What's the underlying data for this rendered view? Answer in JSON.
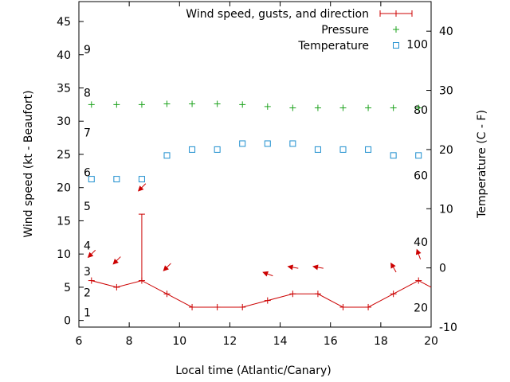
{
  "chart_data": {
    "type": "line",
    "xlabel": "Local time (Atlantic/Canary)",
    "ylabel_left": "Wind speed (kt - Beaufort)",
    "ylabel_right": "Temperature (C - F)",
    "xlim": [
      6,
      20
    ],
    "ylim_left": [
      -1,
      48
    ],
    "ylim_right": [
      -10,
      45
    ],
    "x_ticks": [
      6,
      8,
      10,
      12,
      14,
      16,
      18,
      20
    ],
    "y_left_ticks": [
      0,
      5,
      10,
      15,
      20,
      25,
      30,
      35,
      40,
      45
    ],
    "y_right_ticks": [
      -10,
      0,
      10,
      20,
      30,
      40
    ],
    "beaufort_labels": [
      {
        "label": "1",
        "kt": 1.2
      },
      {
        "label": "2",
        "kt": 4.2
      },
      {
        "label": "3",
        "kt": 7.4
      },
      {
        "label": "4",
        "kt": 11.3
      },
      {
        "label": "5",
        "kt": 17.2
      },
      {
        "label": "6",
        "kt": 22.3
      },
      {
        "label": "7",
        "kt": 28.3
      },
      {
        "label": "8",
        "kt": 34.3
      },
      {
        "label": "9",
        "kt": 40.8
      }
    ],
    "fahrenheit_labels": [
      {
        "label": "20",
        "c": -6.7
      },
      {
        "label": "40",
        "c": 4.4
      },
      {
        "label": "60",
        "c": 15.6
      },
      {
        "label": "80",
        "c": 26.7
      },
      {
        "label": "100",
        "c": 37.8
      }
    ],
    "legend": {
      "position": "top-right",
      "entries": [
        {
          "label": "Wind speed, gusts, and direction",
          "symbol": "line-plus",
          "color": "#cc0000"
        },
        {
          "label": "Pressure",
          "symbol": "plus",
          "color": "#1ea31e"
        },
        {
          "label": "Temperature",
          "symbol": "square",
          "color": "#1f8fcf"
        }
      ]
    },
    "wind": {
      "name": "Wind speed, gusts, and direction",
      "color": "#cc0000",
      "x": [
        6.5,
        7.5,
        8.5,
        9.5,
        10.5,
        11.5,
        12.5,
        13.5,
        14.5,
        15.5,
        16.5,
        17.5,
        18.5,
        19.5,
        20.0
      ],
      "speed": [
        6,
        5,
        6,
        4,
        2,
        2,
        2,
        3,
        4,
        4,
        2,
        2,
        4,
        6,
        5
      ],
      "gust": [
        null,
        null,
        16,
        null,
        null,
        null,
        null,
        null,
        null,
        null,
        null,
        null,
        null,
        null,
        null
      ],
      "direction_arrows": [
        {
          "x": 6.5,
          "kt": 10,
          "angle": 135
        },
        {
          "x": 7.5,
          "kt": 9,
          "angle": 135
        },
        {
          "x": 8.5,
          "kt": 20,
          "angle": 135
        },
        {
          "x": 9.5,
          "kt": 8,
          "angle": 135
        },
        {
          "x": 13.5,
          "kt": 7,
          "angle": 200
        },
        {
          "x": 14.5,
          "kt": 8,
          "angle": 190
        },
        {
          "x": 15.5,
          "kt": 8,
          "angle": 190
        },
        {
          "x": 18.5,
          "kt": 8,
          "angle": 240
        },
        {
          "x": 19.5,
          "kt": 10,
          "angle": 250
        }
      ]
    },
    "pressure": {
      "name": "Pressure",
      "color": "#1ea31e",
      "x": [
        6.5,
        7.5,
        8.5,
        9.5,
        10.5,
        11.5,
        12.5,
        13.5,
        14.5,
        15.5,
        16.5,
        17.5,
        18.5,
        19.5
      ],
      "y": [
        32.5,
        32.5,
        32.5,
        32.6,
        32.6,
        32.6,
        32.5,
        32.2,
        32.0,
        32.0,
        32.0,
        32.0,
        32.0,
        32.0
      ]
    },
    "temperature": {
      "name": "Temperature",
      "color": "#1f8fcf",
      "x": [
        6.5,
        7.5,
        8.5,
        9.5,
        10.5,
        11.5,
        12.5,
        13.5,
        14.5,
        15.5,
        16.5,
        17.5,
        18.5,
        19.5
      ],
      "y": [
        15,
        15,
        15,
        19,
        20,
        20,
        21,
        21,
        21,
        20,
        20,
        20,
        19,
        19
      ]
    }
  }
}
